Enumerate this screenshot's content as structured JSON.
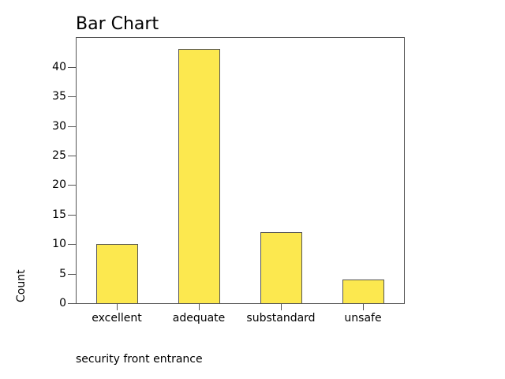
{
  "chart_data": {
    "type": "bar",
    "title": "Bar Chart",
    "xlabel": "security front entrance",
    "ylabel": "Count",
    "categories": [
      "excellent",
      "adequate",
      "substandard",
      "unsafe"
    ],
    "values": [
      10,
      43,
      12,
      4
    ],
    "ylim": [
      0,
      45
    ],
    "yticks": [
      0,
      5,
      10,
      15,
      20,
      25,
      30,
      35,
      40
    ],
    "grid": false,
    "legend": null,
    "bar_color": "#fce84f",
    "edge_color": "#555555"
  }
}
